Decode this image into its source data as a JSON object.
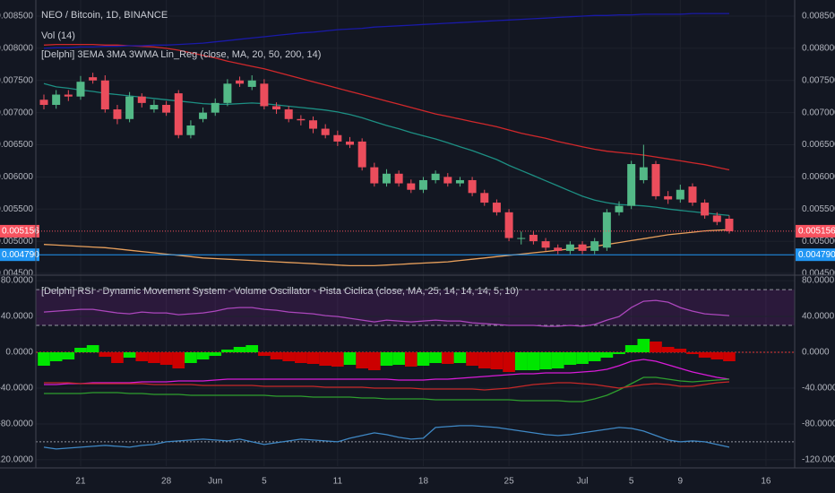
{
  "chart_data": [
    {
      "type": "candlestick",
      "title": "NEO / Bitcoin, 1D, BINANCE",
      "indicators": [
        "Vol (14)",
        "[Delphi] 3EMA 3MA 3WMA Lin_Reg (close, MA, 20, 50, 200, 14)"
      ],
      "categories": [
        null,
        null,
        null,
        "21",
        null,
        null,
        null,
        null,
        null,
        null,
        "28",
        null,
        null,
        null,
        "Jun",
        null,
        null,
        null,
        "5",
        null,
        null,
        null,
        null,
        null,
        "11",
        null,
        null,
        null,
        null,
        null,
        null,
        "18",
        null,
        null,
        null,
        null,
        null,
        null,
        "25",
        null,
        null,
        null,
        null,
        null,
        "Jul",
        null,
        null,
        null,
        "5",
        null,
        null,
        null,
        "9",
        null,
        null,
        null,
        null,
        null,
        null,
        "16",
        null,
        null
      ],
      "open": [
        0.0072,
        0.00712,
        0.00728,
        0.00725,
        0.00755,
        0.0075,
        0.00705,
        0.0069,
        0.00725,
        0.00705,
        0.00712,
        0.0073,
        0.00665,
        0.0069,
        0.007,
        0.00715,
        0.0075,
        0.0074,
        0.00745,
        0.0071,
        0.00705,
        0.0069,
        0.00688,
        0.00675,
        0.00665,
        0.00655,
        0.00655,
        0.00615,
        0.0059,
        0.00605,
        0.0059,
        0.0058,
        0.00595,
        0.006,
        0.0059,
        0.00595,
        0.00575,
        0.0056,
        0.00545,
        0.00505,
        0.0051,
        0.005,
        0.0049,
        0.00485,
        0.00495,
        0.00485,
        0.0049,
        0.00545,
        0.00555,
        0.00595,
        0.0062,
        0.0057,
        0.00565,
        0.00585,
        0.0056,
        0.0054,
        0.00535,
        null,
        null,
        null,
        null,
        null
      ],
      "high": [
        0.00728,
        0.00735,
        0.00735,
        0.00757,
        0.00762,
        0.00758,
        0.00712,
        0.00732,
        0.0073,
        0.0072,
        0.00718,
        0.00735,
        0.00688,
        0.00708,
        0.00722,
        0.00752,
        0.00756,
        0.00758,
        0.00752,
        0.00716,
        0.0071,
        0.00696,
        0.00694,
        0.00682,
        0.00672,
        0.00662,
        0.0066,
        0.00622,
        0.00612,
        0.0061,
        0.00596,
        0.006,
        0.0061,
        0.00606,
        0.006,
        0.006,
        0.0058,
        0.00565,
        0.0055,
        0.00515,
        0.00515,
        0.00505,
        0.00495,
        0.005,
        0.005,
        0.00505,
        0.0055,
        0.00562,
        0.00625,
        0.0065,
        0.00625,
        0.00578,
        0.00588,
        0.0059,
        0.00565,
        0.00545,
        0.0054,
        null,
        null,
        null,
        null,
        null
      ],
      "low": [
        0.00705,
        0.00706,
        0.00718,
        0.0072,
        0.00745,
        0.007,
        0.00682,
        0.00685,
        0.00708,
        0.007,
        0.00695,
        0.0066,
        0.0066,
        0.00685,
        0.00695,
        0.0071,
        0.0074,
        0.00735,
        0.00705,
        0.00698,
        0.00685,
        0.0068,
        0.00668,
        0.0066,
        0.00648,
        0.00645,
        0.0061,
        0.00585,
        0.00585,
        0.00585,
        0.00575,
        0.00575,
        0.0059,
        0.00585,
        0.00585,
        0.0057,
        0.00555,
        0.0054,
        0.005,
        0.00495,
        0.00495,
        0.00485,
        0.0048,
        0.0048,
        0.0048,
        0.0048,
        0.00485,
        0.0054,
        0.0055,
        0.0059,
        0.00565,
        0.00558,
        0.0056,
        0.00555,
        0.00535,
        0.00525,
        0.00512,
        null,
        null,
        null,
        null,
        null
      ],
      "close": [
        0.00712,
        0.00728,
        0.00725,
        0.00748,
        0.0075,
        0.00705,
        0.0069,
        0.00725,
        0.00715,
        0.00712,
        0.007,
        0.00665,
        0.0068,
        0.007,
        0.00715,
        0.00745,
        0.00745,
        0.0075,
        0.0071,
        0.00705,
        0.0069,
        0.00688,
        0.00675,
        0.00665,
        0.00655,
        0.0065,
        0.00615,
        0.0059,
        0.00605,
        0.0059,
        0.0058,
        0.00595,
        0.00605,
        0.0059,
        0.00595,
        0.00575,
        0.0056,
        0.00545,
        0.00505,
        0.00505,
        0.005,
        0.0049,
        0.00485,
        0.00495,
        0.00485,
        0.005,
        0.00545,
        0.00555,
        0.0062,
        0.00615,
        0.0057,
        0.00565,
        0.0058,
        0.0056,
        0.0054,
        0.0053,
        0.005156,
        null,
        null,
        null,
        null,
        null
      ],
      "up_color": "#53b987",
      "down_color": "#eb4d5c",
      "series": [
        {
          "color": "#1d8f83",
          "values": [
            0.00745,
            0.0074,
            0.00738,
            0.00735,
            0.00733,
            0.0073,
            0.00728,
            0.00726,
            0.00724,
            0.00722,
            0.0072,
            0.00718,
            0.00716,
            0.00714,
            0.00713,
            0.00713,
            0.00714,
            0.00715,
            0.00714,
            0.00712,
            0.0071,
            0.00708,
            0.00706,
            0.00704,
            0.00701,
            0.00697,
            0.00692,
            0.00686,
            0.0068,
            0.00675,
            0.00669,
            0.00664,
            0.00659,
            0.00653,
            0.00647,
            0.00641,
            0.00634,
            0.00627,
            0.00618,
            0.0061,
            0.00602,
            0.00594,
            0.00586,
            0.00578,
            0.0057,
            0.00564,
            0.0056,
            0.00557,
            0.00556,
            0.00555,
            0.00553,
            0.0055,
            0.00548,
            0.00546,
            0.00544,
            0.00542,
            0.0054,
            null,
            null,
            null,
            null,
            null
          ]
        },
        {
          "color": "#d0282b",
          "values": [
            0.00805,
            0.00806,
            0.00806,
            0.00806,
            0.00806,
            0.00805,
            0.00805,
            0.00804,
            0.00803,
            0.00802,
            0.008,
            0.00797,
            0.00793,
            0.00789,
            0.00785,
            0.0078,
            0.00776,
            0.00772,
            0.00768,
            0.00763,
            0.00758,
            0.00753,
            0.00748,
            0.00743,
            0.00738,
            0.00733,
            0.00728,
            0.00723,
            0.00718,
            0.00713,
            0.00708,
            0.00703,
            0.00698,
            0.00694,
            0.0069,
            0.00686,
            0.00682,
            0.00678,
            0.00673,
            0.00668,
            0.00664,
            0.0066,
            0.00655,
            0.00651,
            0.00647,
            0.00643,
            0.0064,
            0.00638,
            0.00636,
            0.00634,
            0.00631,
            0.00628,
            0.00625,
            0.00622,
            0.00619,
            0.00615,
            0.00611,
            null,
            null,
            null,
            null,
            null
          ]
        },
        {
          "color": "#1a1aa8",
          "values": [
            0.008,
            0.00801,
            0.00801,
            0.00802,
            0.00802,
            0.00803,
            0.00803,
            0.00804,
            0.00804,
            0.00805,
            0.00805,
            0.00806,
            0.00807,
            0.00808,
            0.0081,
            0.00812,
            0.00814,
            0.00816,
            0.00818,
            0.0082,
            0.00822,
            0.00824,
            0.00825,
            0.00827,
            0.00829,
            0.0083,
            0.00831,
            0.00833,
            0.00834,
            0.00835,
            0.00836,
            0.00837,
            0.00838,
            0.00839,
            0.0084,
            0.00841,
            0.00842,
            0.00843,
            0.00844,
            0.00845,
            0.00846,
            0.00847,
            0.00848,
            0.00849,
            0.0085,
            0.00851,
            0.00851,
            0.00852,
            0.00852,
            0.00853,
            0.00853,
            0.00853,
            0.00853,
            0.00854,
            0.00854,
            0.00854,
            0.00854,
            null,
            null,
            null,
            null,
            null
          ]
        },
        {
          "color": "#e8a05c",
          "values": [
            0.00495,
            0.00494,
            0.00493,
            0.00492,
            0.00491,
            0.0049,
            0.00488,
            0.00486,
            0.00484,
            0.00482,
            0.0048,
            0.00478,
            0.00476,
            0.00474,
            0.00473,
            0.00472,
            0.00471,
            0.0047,
            0.00469,
            0.00468,
            0.00467,
            0.00466,
            0.00465,
            0.00464,
            0.00463,
            0.00462,
            0.00462,
            0.00462,
            0.00463,
            0.00464,
            0.00465,
            0.00466,
            0.00467,
            0.00468,
            0.0047,
            0.00472,
            0.00474,
            0.00476,
            0.00478,
            0.0048,
            0.00482,
            0.00484,
            0.00486,
            0.00488,
            0.0049,
            0.00492,
            0.00495,
            0.00498,
            0.00501,
            0.00504,
            0.00507,
            0.0051,
            0.00512,
            0.00514,
            0.00516,
            0.00517,
            0.00518,
            null,
            null,
            null,
            null,
            null
          ]
        }
      ],
      "price_lines": [
        {
          "value": 0.005156,
          "label": "0.005156",
          "color": "#f7525f"
        },
        {
          "value": 0.00479,
          "label": "0.004790",
          "color": "#2196f3"
        }
      ],
      "ylim": [
        0.004486,
        0.008751
      ],
      "yticks": [
        {
          "value": 0.0045,
          "label": "0.004500"
        },
        {
          "value": 0.005,
          "label": "0.005000"
        },
        {
          "value": 0.0055,
          "label": "0.005500"
        },
        {
          "value": 0.006,
          "label": "0.006000"
        },
        {
          "value": 0.0065,
          "label": "0.006500"
        },
        {
          "value": 0.007,
          "label": "0.007000"
        },
        {
          "value": 0.0075,
          "label": "0.007500"
        },
        {
          "value": 0.008,
          "label": "0.008000"
        },
        {
          "value": 0.0085,
          "label": "0.008500"
        }
      ],
      "grid": true
    },
    {
      "type": "oscillator",
      "title": "[Delphi] RSI - Dynamic Movement System - Volume Oscillator - Pista Ciclica (close, MA, 25, 14, 14, 14, 5, 10)",
      "band": [
        70,
        30
      ],
      "band_color": "#9c27b0",
      "hlines": [
        {
          "value": 0,
          "color": "#e53935"
        },
        {
          "value": -100,
          "color": "#9598a1"
        }
      ],
      "histogram": {
        "up_color": "#00e600",
        "down_color": "#cc0000",
        "values": [
          -15,
          -10,
          -8,
          5,
          8,
          -5,
          -12,
          -6,
          -10,
          -12,
          -14,
          -18,
          -12,
          -8,
          -4,
          3,
          6,
          8,
          -4,
          -8,
          -10,
          -12,
          -13,
          -15,
          -16,
          -14,
          -18,
          -20,
          -15,
          -14,
          -16,
          -15,
          -12,
          -13,
          -12,
          -15,
          -18,
          -19,
          -22,
          -20,
          -20,
          -19,
          -18,
          -14,
          -13,
          -10,
          -6,
          -2,
          8,
          15,
          12,
          6,
          4,
          -2,
          -6,
          -8,
          -10,
          null,
          null,
          null,
          null,
          null
        ]
      },
      "series": [
        {
          "color": "#ab47bc",
          "values": [
            45,
            46,
            47,
            48,
            48,
            46,
            44,
            43,
            45,
            44,
            44,
            42,
            43,
            44,
            46,
            49,
            50,
            50,
            48,
            47,
            45,
            44,
            43,
            41,
            40,
            38,
            36,
            34,
            36,
            35,
            34,
            35,
            36,
            35,
            35,
            33,
            32,
            31,
            30,
            30,
            30,
            29,
            29,
            30,
            29,
            31,
            36,
            40,
            50,
            57,
            58,
            56,
            50,
            46,
            43,
            42,
            41,
            null,
            null,
            null,
            null,
            null
          ]
        },
        {
          "color": "#d81bd8",
          "values": [
            -36,
            -36,
            -35,
            -35,
            -34,
            -34,
            -34,
            -34,
            -33,
            -33,
            -33,
            -32,
            -32,
            -32,
            -31,
            -30,
            -30,
            -30,
            -30,
            -30,
            -30,
            -30,
            -30,
            -30,
            -30,
            -30,
            -30,
            -30,
            -30,
            -31,
            -31,
            -31,
            -30,
            -30,
            -29,
            -28,
            -27,
            -26,
            -25,
            -24,
            -24,
            -23,
            -23,
            -23,
            -22,
            -21,
            -19,
            -15,
            -10,
            -8,
            -10,
            -14,
            -18,
            -22,
            -25,
            -28,
            -30,
            null,
            null,
            null,
            null,
            null
          ]
        },
        {
          "color": "#2e9e2e",
          "values": [
            -46,
            -46,
            -46,
            -46,
            -45,
            -45,
            -45,
            -46,
            -46,
            -47,
            -47,
            -47,
            -48,
            -48,
            -48,
            -48,
            -48,
            -48,
            -48,
            -49,
            -49,
            -49,
            -50,
            -50,
            -50,
            -50,
            -51,
            -51,
            -52,
            -52,
            -52,
            -52,
            -53,
            -53,
            -53,
            -53,
            -53,
            -53,
            -53,
            -54,
            -54,
            -54,
            -54,
            -55,
            -55,
            -52,
            -48,
            -42,
            -35,
            -28,
            -28,
            -30,
            -32,
            -33,
            -32,
            -31,
            -30,
            null,
            null,
            null,
            null,
            null
          ]
        },
        {
          "color": "#c62828",
          "values": [
            -34,
            -34,
            -34,
            -35,
            -35,
            -35,
            -35,
            -35,
            -35,
            -36,
            -36,
            -36,
            -36,
            -37,
            -37,
            -37,
            -37,
            -37,
            -38,
            -38,
            -38,
            -38,
            -38,
            -39,
            -39,
            -39,
            -39,
            -40,
            -40,
            -40,
            -40,
            -41,
            -41,
            -41,
            -41,
            -41,
            -42,
            -41,
            -40,
            -38,
            -36,
            -35,
            -34,
            -34,
            -35,
            -36,
            -38,
            -40,
            -38,
            -36,
            -35,
            -36,
            -38,
            -38,
            -36,
            -34,
            -33,
            null,
            null,
            null,
            null,
            null
          ]
        },
        {
          "color": "#3f88c5",
          "values": [
            -106,
            -108,
            -107,
            -106,
            -105,
            -104,
            -105,
            -106,
            -104,
            -103,
            -100,
            -99,
            -98,
            -97,
            -98,
            -99,
            -97,
            -100,
            -103,
            -101,
            -99,
            -97,
            -98,
            -99,
            -100,
            -96,
            -93,
            -90,
            -92,
            -95,
            -97,
            -96,
            -84,
            -83,
            -82,
            -82,
            -83,
            -84,
            -86,
            -88,
            -90,
            -92,
            -93,
            -92,
            -90,
            -88,
            -86,
            -84,
            -85,
            -88,
            -93,
            -98,
            -100,
            -99,
            -100,
            -103,
            -106,
            null,
            null,
            null,
            null,
            null
          ]
        }
      ],
      "ylim": [
        -127.1,
        85.1
      ],
      "yticks": [
        {
          "value": 80,
          "label": "80.0000"
        },
        {
          "value": 40,
          "label": "40.0000"
        },
        {
          "value": 0,
          "label": "0.0000"
        },
        {
          "value": -40,
          "label": "-40.0000"
        },
        {
          "value": -80,
          "label": "-80.0000"
        },
        {
          "value": -120,
          "label": "-120.0000"
        }
      ],
      "grid": true
    }
  ]
}
